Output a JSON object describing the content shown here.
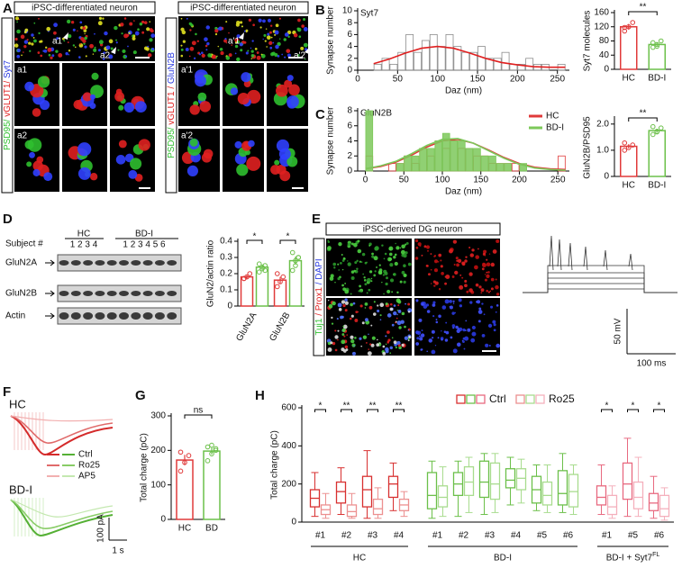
{
  "panel_labels": [
    "A",
    "B",
    "C",
    "D",
    "E",
    "F",
    "G",
    "H"
  ],
  "panel_a": [
    {
      "title": "iPSC-differentiated neuron",
      "stain": [
        "PSD95/",
        " vGLUT1/",
        " Syt7"
      ],
      "markers": [
        "a1",
        "a2"
      ],
      "insets": [
        "a1",
        "a2"
      ]
    },
    {
      "title": "iPSC-differentiated neuron",
      "stain": [
        "PSD95/",
        " vGLUT1 /",
        " GluN2B"
      ],
      "markers": [
        "a'1",
        "a'2"
      ],
      "insets": [
        "a'1",
        "a'2"
      ]
    }
  ],
  "panel_d": {
    "subject_label": "Subject #",
    "groups": [
      "HC",
      "BD-I"
    ],
    "subjects": [
      "1 2 3 4",
      "1 2 3 4 5 6"
    ],
    "blots": [
      "GluN2A",
      "GluN2B",
      "Actin"
    ]
  },
  "panel_e": {
    "title": "iPSC-derived DG neuron",
    "stain": [
      "Tuj1",
      " / Prox1",
      " / DAPI"
    ],
    "scale_y": "50 mV",
    "scale_x": "100 ms"
  },
  "panel_f": {
    "conditions": [
      "HC",
      "BD-I"
    ],
    "legend": [
      "Ctrl",
      "Ro25",
      "AP5"
    ],
    "scale_y": "100 pA",
    "scale_x": "1 s"
  },
  "chart_data": [
    {
      "type": "histogram",
      "label": "Syt7",
      "xlabel": "Daz (nm)",
      "ylabel": "Synapse number",
      "bins": [
        20,
        30,
        40,
        50,
        60,
        70,
        80,
        90,
        100,
        110,
        120,
        130,
        140,
        150,
        160,
        170,
        180,
        190,
        200,
        210,
        220,
        230,
        240,
        250,
        260
      ],
      "values": [
        1,
        2,
        1,
        3,
        6,
        3,
        5,
        6,
        4,
        6,
        4,
        3,
        3,
        4,
        2,
        2,
        3,
        1,
        1,
        2,
        1,
        1,
        0,
        1
      ],
      "color": "#8c8c8c",
      "fit_x": [
        20,
        40,
        60,
        80,
        100,
        120,
        140,
        160,
        180,
        200,
        220,
        240,
        260
      ],
      "fit": [
        1.1,
        1.9,
        2.9,
        3.7,
        4,
        3.7,
        2.9,
        2.0,
        1.3,
        0.9,
        0.6,
        0.5,
        0.5
      ],
      "fit_color": "#e02020",
      "xlim": [
        0,
        265
      ],
      "xticks": [
        0,
        50,
        100,
        150,
        200,
        250
      ],
      "ylim": [
        0,
        10
      ],
      "yticks": [
        0,
        2,
        4,
        6,
        8,
        10
      ]
    },
    {
      "type": "bar",
      "ylabel": "Syt7 molecules",
      "categories": [
        "HC",
        "BD-I"
      ],
      "values": [
        120,
        70
      ],
      "errors": [
        8,
        6
      ],
      "points": [
        [
          108,
          120,
          132,
          118
        ],
        [
          62,
          70,
          80,
          75,
          65
        ]
      ],
      "colors": [
        "#e03a3a",
        "#6cc04a"
      ],
      "significance": "**",
      "ylim": [
        0,
        160
      ],
      "yticks": [
        0,
        40,
        80,
        120,
        160
      ]
    },
    {
      "type": "histogram",
      "label": "GluN2B",
      "xlabel": "Daz (nm)",
      "ylabel": "Synapse number",
      "bins": [
        -10,
        0,
        10,
        20,
        30,
        40,
        50,
        60,
        70,
        80,
        90,
        100,
        110,
        120,
        130,
        140,
        150,
        160,
        170,
        180,
        190,
        200,
        210,
        220,
        230,
        240,
        250,
        260
      ],
      "series": [
        {
          "name": "HC",
          "color": "#e03a3a",
          "filled": false,
          "values": [
            0,
            2,
            0,
            0,
            1,
            1,
            2,
            1,
            3,
            2,
            4,
            3,
            4,
            3,
            3,
            2,
            2,
            1,
            1,
            1,
            1,
            0,
            0,
            0,
            0,
            0,
            2
          ],
          "fit": [
            0.3,
            0.6,
            1.2,
            2.1,
            3.2,
            4.0,
            4.2,
            3.7,
            2.8,
            1.8,
            1.0,
            0.5,
            0.3,
            0.2
          ]
        },
        {
          "name": "BD-I",
          "color": "#7cc85a",
          "filled": true,
          "values": [
            0,
            8,
            0,
            0,
            0,
            1,
            2,
            2,
            3,
            3,
            4,
            5,
            4,
            4,
            3,
            3,
            2,
            2,
            1,
            1,
            0,
            1,
            0,
            0,
            0,
            0,
            0
          ],
          "fit": [
            0.3,
            0.7,
            1.3,
            2.3,
            3.4,
            4.2,
            4.3,
            3.7,
            2.7,
            1.7,
            0.9,
            0.4,
            0.2,
            0.1
          ]
        }
      ],
      "fit_x": [
        0,
        20,
        40,
        60,
        80,
        100,
        120,
        140,
        160,
        180,
        200,
        220,
        240,
        260
      ],
      "xlim": [
        -10,
        265
      ],
      "xticks": [
        0,
        50,
        100,
        150,
        200,
        250
      ],
      "ylim": [
        0,
        8
      ],
      "yticks": [
        0,
        2,
        4,
        6,
        8
      ]
    },
    {
      "type": "bar",
      "ylabel": "GluN2B/PSD95",
      "categories": [
        "HC",
        "BD-I"
      ],
      "values": [
        1.15,
        1.75
      ],
      "errors": [
        0.08,
        0.07
      ],
      "points": [
        [
          1.0,
          1.1,
          1.2,
          1.28
        ],
        [
          1.6,
          1.7,
          1.85,
          1.9,
          1.72
        ]
      ],
      "colors": [
        "#e03a3a",
        "#6cc04a"
      ],
      "significance": "**",
      "ylim": [
        0,
        2.2
      ],
      "yticks": [
        0,
        {
          "value": 1,
          "label": "1.0"
        },
        {
          "value": 2,
          "label": "2.0"
        }
      ]
    },
    {
      "type": "bar",
      "ylabel": "GluN2/actin ratio",
      "categories": [
        "GluN2A",
        "GluN2B"
      ],
      "series": [
        {
          "color": "#e03a3a",
          "values": [
            0.18,
            0.16
          ],
          "errors": [
            0.01,
            0.02
          ],
          "points": [
            [
              0.17,
              0.18,
              0.2,
              0.17
            ],
            [
              0.12,
              0.15,
              0.18,
              0.2
            ]
          ]
        },
        {
          "color": "#6cc04a",
          "values": [
            0.24,
            0.28
          ],
          "errors": [
            0.015,
            0.025
          ],
          "points": [
            [
              0.21,
              0.23,
              0.25,
              0.26,
              0.24,
              0.22
            ],
            [
              0.22,
              0.25,
              0.3,
              0.33,
              0.28,
              0.3
            ]
          ]
        }
      ],
      "significance": [
        "*",
        "*"
      ],
      "ylim": [
        0,
        0.4
      ],
      "yticks": [
        0,
        0.1,
        0.2,
        0.3,
        0.4
      ]
    },
    {
      "type": "bar",
      "ylabel": "Total charge (pC)",
      "categories": [
        "HC",
        "BD"
      ],
      "values": [
        172,
        198
      ],
      "errors": [
        15,
        10
      ],
      "points": [
        [
          140,
          165,
          185,
          195
        ],
        [
          170,
          190,
          200,
          210,
          215,
          205
        ]
      ],
      "colors": [
        "#e03a3a",
        "#6cc04a"
      ],
      "significance": "ns",
      "ylim": [
        0,
        300
      ],
      "yticks": [
        0,
        100,
        200,
        300
      ]
    },
    {
      "type": "box",
      "ylabel": "Total charge (pC)",
      "legend": [
        "Ctrl",
        "Ro25"
      ],
      "ylim": [
        0,
        600
      ],
      "yticks": [
        0,
        200,
        400,
        600
      ],
      "groups": [
        {
          "name": "HC",
          "colors": [
            "#d83030",
            "#ec9090"
          ],
          "categories": [
            "#1",
            "#2",
            "#3",
            "#4"
          ],
          "significance": [
            "*",
            "**",
            "**",
            "**"
          ],
          "series": [
            {
              "values": [
                [
                  30,
                  80,
                  125,
                  170,
                  260
                ],
                [
                  40,
                  100,
                  160,
                  210,
                  285
                ],
                [
                  20,
                  80,
                  170,
                  240,
                  375
                ],
                [
                  60,
                  130,
                  200,
                  240,
                  310
                ]
              ]
            },
            {
              "values": [
                [
                  20,
                  40,
                  65,
                  90,
                  150
                ],
                [
                  20,
                  30,
                  55,
                  90,
                  150
                ],
                [
                  20,
                  40,
                  70,
                  120,
                  180
                ],
                [
                  30,
                  60,
                  90,
                  120,
                  160
                ]
              ]
            }
          ]
        },
        {
          "name": "BD-I",
          "colors": [
            "#6cc04a",
            "#a8dc8e"
          ],
          "categories": [
            "#1",
            "#2",
            "#3",
            "#4",
            "#5",
            "#6"
          ],
          "series": [
            {
              "values": [
                [
                  20,
                  70,
                  140,
                  260,
                  320
                ],
                [
                  30,
                  140,
                  200,
                  260,
                  320
                ],
                [
                  40,
                  130,
                  210,
                  320,
                  360
                ],
                [
                  90,
                  180,
                  220,
                  280,
                  340
                ],
                [
                  60,
                  100,
                  170,
                  240,
                  300
                ],
                [
                  50,
                  90,
                  150,
                  270,
                  360
                ]
              ]
            },
            {
              "values": [
                [
                  30,
                  80,
                  130,
                  190,
                  290
                ],
                [
                  50,
                  140,
                  210,
                  290,
                  340
                ],
                [
                  50,
                  120,
                  200,
                  310,
                  360
                ],
                [
                  100,
                  170,
                  230,
                  280,
                  330
                ],
                [
                  50,
                  90,
                  140,
                  210,
                  300
                ],
                [
                  40,
                  80,
                  160,
                  250,
                  300
                ]
              ]
            }
          ]
        },
        {
          "name": "BD-I + Syt7",
          "superscript": "FL",
          "colors": [
            "#e86a80",
            "#f4b0bc"
          ],
          "categories": [
            "#1",
            "#5",
            "#6"
          ],
          "significance": [
            "*",
            "*",
            "*"
          ],
          "series": [
            {
              "values": [
                [
                  40,
                  90,
                  130,
                  190,
                  300
                ],
                [
                  30,
                  120,
                  200,
                  310,
                  440
                ],
                [
                  20,
                  60,
                  100,
                  150,
                  240
                ]
              ]
            },
            {
              "values": [
                [
                  20,
                  40,
                  80,
                  140,
                  190
                ],
                [
                  30,
                  70,
                  130,
                  210,
                  340
                ],
                [
                  10,
                  30,
                  70,
                  140,
                  180
                ]
              ]
            }
          ]
        }
      ]
    }
  ]
}
